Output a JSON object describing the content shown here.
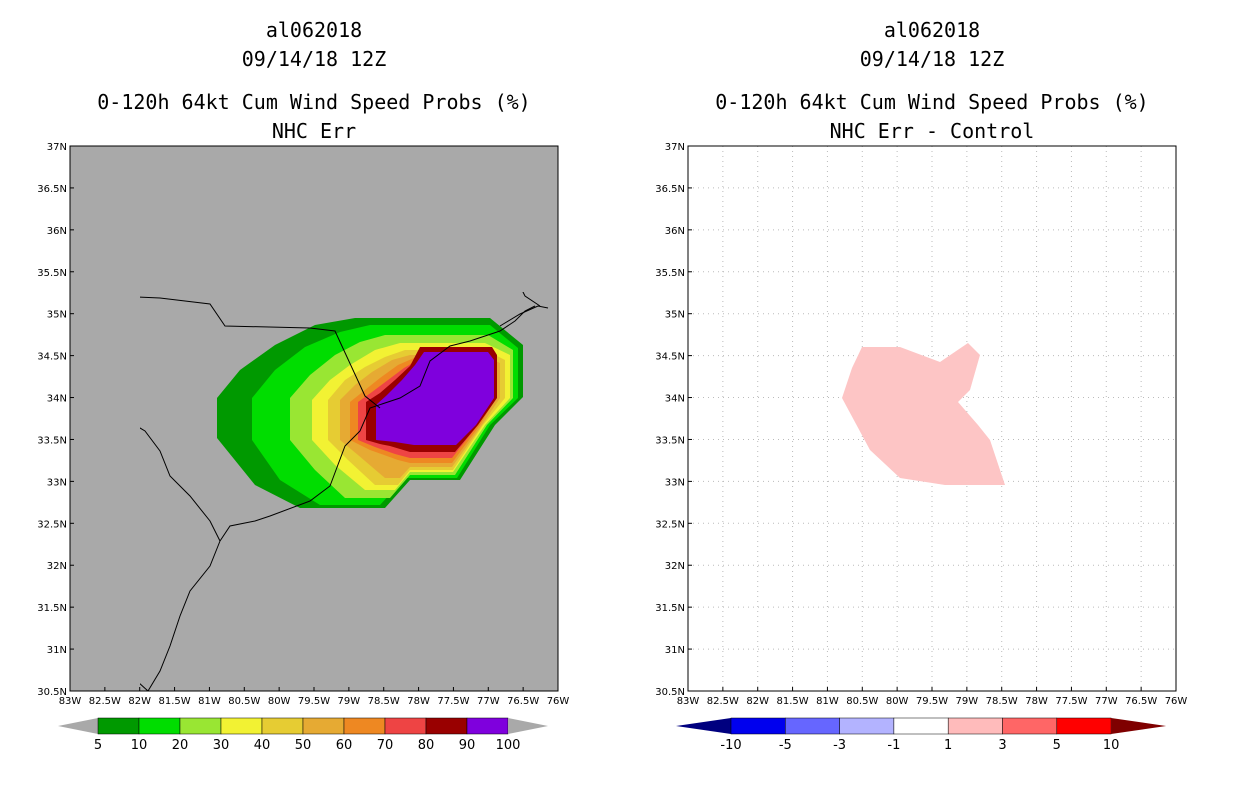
{
  "left_panel": {
    "title1": "al062018",
    "title2": "09/14/18 12Z",
    "title3": "0-120h 64kt Cum Wind Speed Probs (%)",
    "title4": "NHC Err",
    "lat_labels": [
      "37N",
      "36.5N",
      "36N",
      "35.5N",
      "35N",
      "34.5N",
      "34N",
      "33.5N",
      "33N",
      "32.5N",
      "32N",
      "31.5N",
      "31N",
      "30.5N"
    ],
    "lon_labels": [
      "83W",
      "82.5W",
      "82W",
      "81.5W",
      "81W",
      "80.5W",
      "80W",
      "79.5W",
      "79W",
      "78.5W",
      "78W",
      "77.5W",
      "77W",
      "76.5W",
      "76W"
    ],
    "colorbar": {
      "labels": [
        "5",
        "10",
        "20",
        "30",
        "40",
        "50",
        "60",
        "70",
        "80",
        "90",
        "100"
      ],
      "colors": [
        "#009900",
        "#00dd00",
        "#99e633",
        "#f2f233",
        "#e6cc33",
        "#e6aa33",
        "#ee8822",
        "#ee4444",
        "#990000",
        "#7f00dd"
      ]
    },
    "background_color": "#a9a9a9"
  },
  "right_panel": {
    "title1": "al062018",
    "title2": "09/14/18 12Z",
    "title3": "0-120h 64kt Cum Wind Speed Probs (%)",
    "title4": "NHC Err - Control",
    "lat_labels": [
      "37N",
      "36.5N",
      "36N",
      "35.5N",
      "35N",
      "34.5N",
      "34N",
      "33.5N",
      "33N",
      "32.5N",
      "32N",
      "31.5N",
      "31N",
      "30.5N"
    ],
    "lon_labels": [
      "83W",
      "82.5W",
      "82W",
      "81.5W",
      "81W",
      "80.5W",
      "80W",
      "79.5W",
      "79W",
      "78.5W",
      "78W",
      "77.5W",
      "77W",
      "76.5W",
      "76W"
    ],
    "colorbar": {
      "labels": [
        "-10",
        "-5",
        "-3",
        "-1",
        "1",
        "3",
        "5",
        "10"
      ],
      "colors": [
        "#0000ee",
        "#6666ff",
        "#b3b3ff",
        "#ffffff",
        "#ffbbbb",
        "#ff6666",
        "#ff0000"
      ],
      "end_left": "#00007f",
      "end_right": "#7f0000"
    },
    "diff_color": "#fdc5c5",
    "background_color": "#ffffff"
  }
}
